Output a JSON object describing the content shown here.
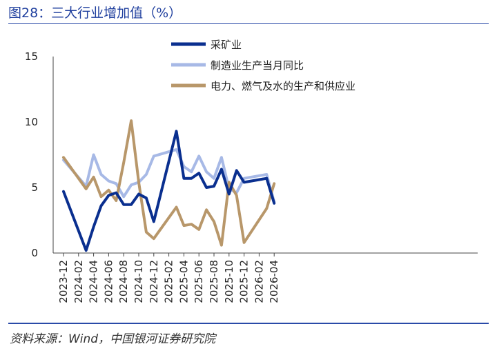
{
  "header": {
    "title": "图28：三大行业增加值（%）"
  },
  "footer": {
    "source": "资料来源：Wind，中国银河证券研究院"
  },
  "colors": {
    "mining": "#0a2f8f",
    "manufacturing": "#a7b9e6",
    "utilities": "#b8976a",
    "rule": "#2a4aa8"
  },
  "chart_data": {
    "type": "line",
    "title": "三大行业增加值（%）",
    "ylim": [
      0,
      15
    ],
    "yticks": [
      "0",
      "5",
      "10",
      "15"
    ],
    "xticks": [
      "2023-12",
      "2024-02",
      "2024-04",
      "2024-06",
      "2024-08",
      "2024-10",
      "2024-12",
      "2025-02",
      "2025-04",
      "2025-06",
      "2025-08",
      "2025-10",
      "2025-12",
      "2026-02",
      "2026-04"
    ],
    "legend_position": "top-center",
    "grid": false,
    "series": [
      {
        "name": "采矿业",
        "color": "#0a2f8f",
        "points": [
          [
            "2023-12",
            4.7
          ],
          [
            "2024-03",
            0.2
          ],
          [
            "2024-04",
            2.0
          ],
          [
            "2024-05",
            3.6
          ],
          [
            "2024-06",
            4.4
          ],
          [
            "2024-07",
            4.6
          ],
          [
            "2024-08",
            3.7
          ],
          [
            "2024-09",
            3.7
          ],
          [
            "2024-10",
            4.5
          ],
          [
            "2024-11",
            4.2
          ],
          [
            "2024-12",
            2.4
          ],
          [
            "2025-03",
            9.3
          ],
          [
            "2025-04",
            5.7
          ],
          [
            "2025-05",
            5.7
          ],
          [
            "2025-06",
            6.1
          ],
          [
            "2025-07",
            5.0
          ],
          [
            "2025-08",
            5.1
          ],
          [
            "2025-09",
            6.4
          ],
          [
            "2025-10",
            4.5
          ],
          [
            "2025-11",
            6.3
          ],
          [
            "2025-12",
            5.4
          ],
          [
            "2026-03",
            5.7
          ],
          [
            "2026-04",
            3.8
          ]
        ]
      },
      {
        "name": "制造业生产当月同比",
        "color": "#a7b9e6",
        "points": [
          [
            "2023-12",
            7.1
          ],
          [
            "2024-03",
            5.1
          ],
          [
            "2024-04",
            7.5
          ],
          [
            "2024-05",
            6.0
          ],
          [
            "2024-06",
            5.5
          ],
          [
            "2024-07",
            5.3
          ],
          [
            "2024-08",
            4.3
          ],
          [
            "2024-09",
            5.2
          ],
          [
            "2024-10",
            5.4
          ],
          [
            "2024-11",
            6.0
          ],
          [
            "2024-12",
            7.4
          ],
          [
            "2025-03",
            7.9
          ],
          [
            "2025-04",
            6.6
          ],
          [
            "2025-05",
            6.2
          ],
          [
            "2025-06",
            7.4
          ],
          [
            "2025-07",
            6.2
          ],
          [
            "2025-08",
            5.7
          ],
          [
            "2025-09",
            7.3
          ],
          [
            "2025-10",
            4.9
          ],
          [
            "2025-11",
            4.6
          ],
          [
            "2025-12",
            5.7
          ],
          [
            "2026-03",
            6.0
          ],
          [
            "2026-04",
            3.9
          ]
        ]
      },
      {
        "name": "电力、燃气及水的生产和供应业",
        "color": "#b8976a",
        "points": [
          [
            "2023-12",
            7.3
          ],
          [
            "2024-03",
            4.9
          ],
          [
            "2024-04",
            5.8
          ],
          [
            "2024-05",
            4.3
          ],
          [
            "2024-06",
            4.8
          ],
          [
            "2024-07",
            4.0
          ],
          [
            "2024-08",
            6.9
          ],
          [
            "2024-09",
            10.1
          ],
          [
            "2024-10",
            5.4
          ],
          [
            "2024-11",
            1.6
          ],
          [
            "2024-12",
            1.1
          ],
          [
            "2025-03",
            3.5
          ],
          [
            "2025-04",
            2.1
          ],
          [
            "2025-05",
            2.2
          ],
          [
            "2025-06",
            1.8
          ],
          [
            "2025-07",
            3.3
          ],
          [
            "2025-08",
            2.4
          ],
          [
            "2025-09",
            0.6
          ],
          [
            "2025-10",
            5.4
          ],
          [
            "2025-11",
            4.4
          ],
          [
            "2025-12",
            0.8
          ],
          [
            "2026-03",
            3.4
          ],
          [
            "2026-04",
            5.3
          ]
        ]
      }
    ]
  }
}
